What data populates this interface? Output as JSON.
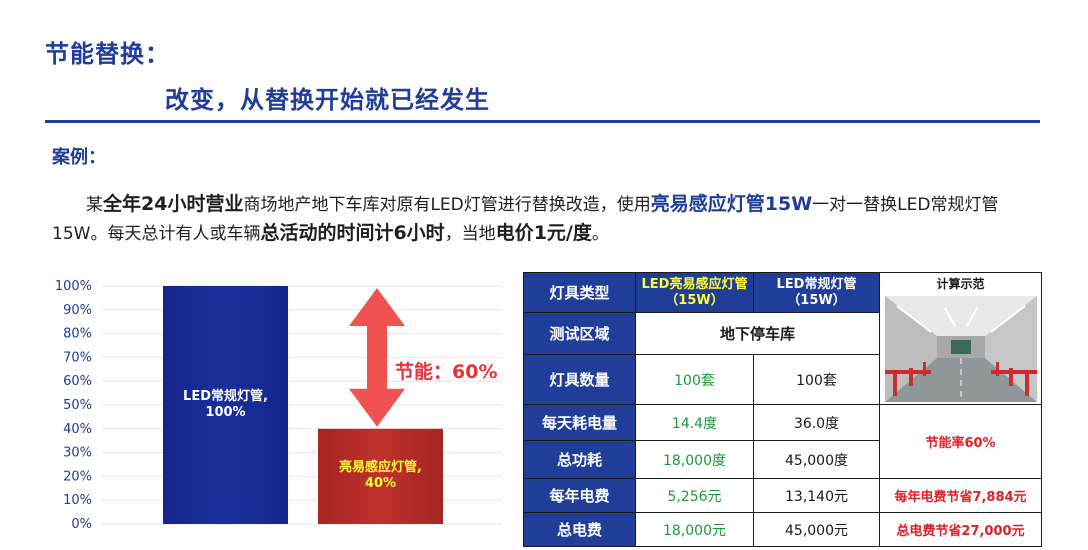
{
  "header": {
    "title": "节能替换：",
    "subtitle": "改变，从替换开始就已经发生"
  },
  "case": {
    "label": "案例：",
    "p1": "某",
    "p2": "全年24小时营业",
    "p3": "商场地产地下车库对原有LED灯管进行替换改造，使用",
    "p4": "亮易感应灯管15W",
    "p5": "一对一替换LED常规灯管15W。每天总计有人或车辆",
    "p6": "总活动的时间计6小时",
    "p7": "，当地",
    "p8": "电价1元/度",
    "p9": "。"
  },
  "chart_data": {
    "type": "bar",
    "categories": [
      "LED常规灯管,100%",
      "亮易感应灯管,40%"
    ],
    "values": [
      100,
      40
    ],
    "ylim": [
      0,
      100
    ],
    "yticks": [
      "0%",
      "10%",
      "20%",
      "30%",
      "40%",
      "50%",
      "60%",
      "70%",
      "80%",
      "90%",
      "100%"
    ],
    "bar_labels": [
      {
        "line1": "LED常规灯管,",
        "line2": "100%"
      },
      {
        "line1": "亮易感应灯管,",
        "line2": "40%"
      }
    ],
    "annotation": "节能：60%",
    "colors": {
      "bar1": "#1a2f9c",
      "bar2": "#c0302c",
      "arrow": "#f05252",
      "tick": "#1f3d99"
    }
  },
  "table": {
    "header": {
      "col0": "灯具类型",
      "col1_line1": "LED亮易感应灯管",
      "col1_line2": "（15W）",
      "col2_line1": "LED常规灯管",
      "col2_line2": "（15W）",
      "col3": "计算示范"
    },
    "rows": {
      "area_label": "测试区域",
      "area_value": "地下停车库",
      "qty_label": "灯具数量",
      "qty_a": "100套",
      "qty_b": "100套",
      "daily_label": "每天耗电量",
      "daily_a": "14.4度",
      "daily_b": "36.0度",
      "total_label": "总功耗",
      "total_a": "18,000度",
      "total_b": "45,000度",
      "saving_rate": "节能率60%",
      "yearly_label": "每年电费",
      "yearly_a": "5,256元",
      "yearly_b": "13,140元",
      "yearly_saving": "每年电费节省7,884元",
      "cost_label": "总电费",
      "cost_a": "18,000元",
      "cost_b": "45,000元",
      "cost_saving": "总电费节省27,000元"
    }
  }
}
